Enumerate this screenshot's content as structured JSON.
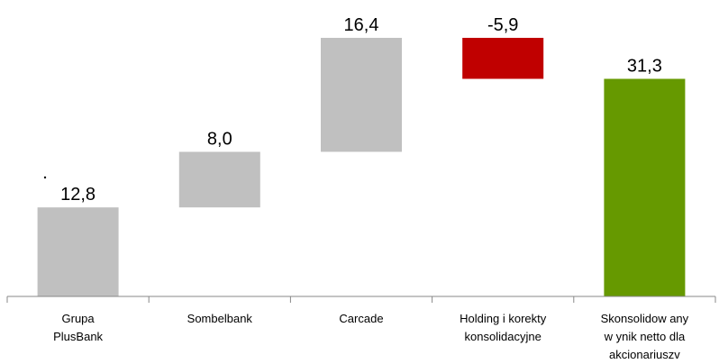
{
  "chart_data": {
    "type": "bar",
    "subtype": "waterfall",
    "categories": [
      [
        "Grupa",
        "PlusBank"
      ],
      [
        "Sombelbank"
      ],
      [
        "Carcade"
      ],
      [
        "Holding i korekty",
        "konsolidacyjne"
      ],
      [
        "Skonsolidow any",
        "w ynik netto dla",
        "akcionariuszv"
      ]
    ],
    "values": [
      12.8,
      8.0,
      16.4,
      -5.9,
      31.3
    ],
    "value_labels": [
      "12,8",
      "8,0",
      "16,4",
      "-5,9",
      "31,3"
    ],
    "total_index": 4,
    "ylim": [
      0,
      37.2
    ],
    "grid": false,
    "colors": {
      "increase": "#c0c0c0",
      "decrease": "#c00000",
      "total": "#669900",
      "axis": "#888888"
    }
  }
}
